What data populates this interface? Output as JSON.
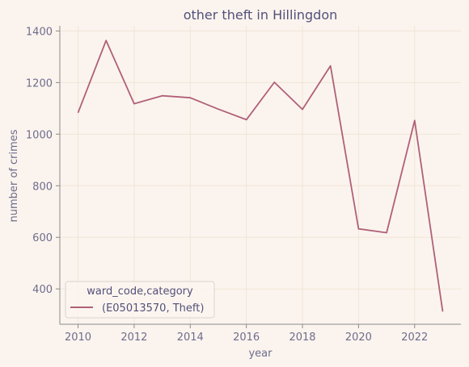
{
  "chart_data": {
    "type": "line",
    "title": "other theft in Hillingdon",
    "xlabel": "year",
    "ylabel": "number of crimes",
    "x": [
      2010,
      2011,
      2012,
      2013,
      2014,
      2015,
      2016,
      2017,
      2018,
      2019,
      2020,
      2021,
      2022,
      2023
    ],
    "series": [
      {
        "name": "(E05013570, Theft)",
        "color": "#b06079",
        "values": [
          1083,
          1363,
          1118,
          1149,
          1141,
          1097,
          1056,
          1201,
          1096,
          1265,
          633,
          618,
          1053,
          312
        ]
      }
    ],
    "xlim": [
      2009.35,
      2023.65
    ],
    "ylim": [
      263,
      1420
    ],
    "xticks": [
      2010,
      2012,
      2014,
      2016,
      2018,
      2020,
      2022
    ],
    "yticks": [
      400,
      600,
      800,
      1000,
      1200,
      1400
    ],
    "grid": true,
    "legend": {
      "title": "ward_code,category",
      "placement": "lower-left"
    }
  }
}
